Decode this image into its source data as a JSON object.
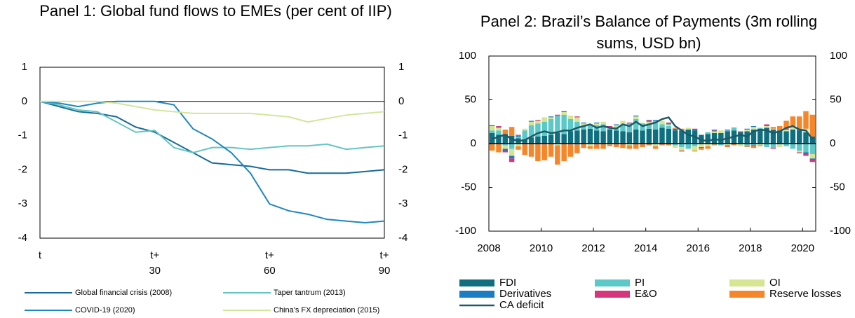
{
  "chart_data": [
    {
      "type": "line",
      "title": "Panel 1: Global fund flows to EMEs (per cent of IIP)",
      "x": [
        0,
        5,
        10,
        15,
        20,
        25,
        30,
        35,
        40,
        45,
        50,
        55,
        60,
        65,
        70,
        75,
        80,
        85,
        90
      ],
      "xlim": [
        0,
        90
      ],
      "xticks": [
        {
          "value": 0,
          "label": "t"
        },
        {
          "value": 30,
          "label": "t+ 30"
        },
        {
          "value": 60,
          "label": "t+ 60"
        },
        {
          "value": 90,
          "label": "t+ 90"
        }
      ],
      "ylim": [
        -4,
        1
      ],
      "yticks": [
        -4,
        -3,
        -2,
        -1,
        0,
        1
      ],
      "y2lim": [
        -4,
        1
      ],
      "y2ticks": [
        -4,
        -3,
        -2,
        -1,
        0,
        1
      ],
      "series": [
        {
          "name": "Global financial crisis (2008)",
          "color": "#176b98",
          "values": [
            0,
            -0.15,
            -0.3,
            -0.35,
            -0.45,
            -0.75,
            -0.9,
            -1.2,
            -1.5,
            -1.8,
            -1.85,
            -1.9,
            -2.0,
            -2.0,
            -2.1,
            -2.1,
            -2.1,
            -2.05,
            -2.0
          ]
        },
        {
          "name": "Taper tantrum (2013)",
          "color": "#62c6c0",
          "values": [
            0,
            -0.1,
            -0.25,
            -0.3,
            -0.6,
            -0.9,
            -0.85,
            -1.35,
            -1.5,
            -1.35,
            -1.35,
            -1.4,
            -1.35,
            -1.3,
            -1.3,
            -1.25,
            -1.4,
            -1.35,
            -1.3
          ]
        },
        {
          "name": "COVID-19 (2020)",
          "color": "#1c87c1",
          "values": [
            0,
            -0.05,
            -0.15,
            -0.05,
            0,
            0,
            0,
            -0.1,
            -0.8,
            -1.1,
            -1.5,
            -2.1,
            -3.0,
            -3.2,
            -3.3,
            -3.45,
            -3.5,
            -3.55,
            -3.5
          ]
        },
        {
          "name": "China's FX depreciation (2015)",
          "color": "#d3e59c",
          "values": [
            0,
            0,
            0,
            0,
            -0.05,
            -0.15,
            -0.25,
            -0.3,
            -0.35,
            -0.35,
            -0.35,
            -0.35,
            -0.4,
            -0.45,
            -0.6,
            -0.5,
            -0.4,
            -0.35,
            -0.3
          ]
        }
      ]
    },
    {
      "type": "bar",
      "stacked": true,
      "title": "Panel 2: Brazil’s Balance of Payments (3m rolling sums, USD bn)",
      "x": [
        2008,
        2008.25,
        2008.5,
        2008.75,
        2009,
        2009.25,
        2009.5,
        2009.75,
        2010,
        2010.25,
        2010.5,
        2010.75,
        2011,
        2011.25,
        2011.5,
        2011.75,
        2012,
        2012.25,
        2012.5,
        2012.75,
        2013,
        2013.25,
        2013.5,
        2013.75,
        2014,
        2014.25,
        2014.5,
        2014.75,
        2015,
        2015.25,
        2015.5,
        2015.75,
        2016,
        2016.25,
        2016.5,
        2016.75,
        2017,
        2017.25,
        2017.5,
        2017.75,
        2018,
        2018.25,
        2018.5,
        2018.75,
        2019,
        2019.25,
        2019.5,
        2019.75,
        2020,
        2020.25
      ],
      "xlim": [
        2008,
        2020.5
      ],
      "xticks": [
        2008,
        2010,
        2012,
        2014,
        2016,
        2018,
        2020
      ],
      "ylim": [
        -100,
        100
      ],
      "yticks": [
        -100,
        -50,
        0,
        50,
        100
      ],
      "y2lim": [
        -100,
        100
      ],
      "y2ticks": [
        -100,
        -50,
        0,
        50,
        100
      ],
      "series": [
        {
          "name": "FDI",
          "color": "#0f6f7f",
          "values": [
            12,
            10,
            11,
            9,
            6,
            5,
            7,
            8,
            9,
            10,
            12,
            11,
            14,
            15,
            16,
            17,
            15,
            14,
            16,
            15,
            14,
            13,
            16,
            15,
            17,
            16,
            18,
            17,
            15,
            14,
            16,
            15,
            10,
            11,
            12,
            12,
            14,
            15,
            13,
            14,
            16,
            17,
            18,
            16,
            15,
            14,
            16,
            15,
            13,
            8
          ]
        },
        {
          "name": "PI",
          "color": "#5cc9c8",
          "values": [
            3,
            5,
            -2,
            -6,
            2,
            10,
            14,
            15,
            16,
            18,
            20,
            22,
            14,
            10,
            5,
            4,
            6,
            8,
            3,
            4,
            8,
            10,
            12,
            8,
            6,
            10,
            4,
            3,
            -2,
            -4,
            -6,
            -3,
            0,
            2,
            -1,
            -2,
            1,
            3,
            0,
            -3,
            -2,
            1,
            -4,
            -5,
            -1,
            -3,
            -6,
            -8,
            -10,
            -12
          ]
        },
        {
          "name": "OI",
          "color": "#d5e592",
          "values": [
            5,
            3,
            -4,
            -8,
            -3,
            2,
            4,
            3,
            5,
            2,
            -2,
            3,
            4,
            5,
            2,
            -3,
            2,
            3,
            -1,
            2,
            4,
            -2,
            3,
            1,
            2,
            -3,
            4,
            2,
            -3,
            -4,
            2,
            -5,
            -4,
            -3,
            2,
            3,
            -2,
            1,
            -3,
            2,
            3,
            -2,
            2,
            1,
            -3,
            2,
            3,
            -2,
            4,
            -5
          ]
        },
        {
          "name": "Derivatives",
          "color": "#1b7ec2",
          "values": [
            1,
            1,
            -2,
            -3,
            1,
            0,
            1,
            0,
            0,
            1,
            0,
            1,
            0,
            -1,
            1,
            0,
            1,
            0,
            0,
            1,
            0,
            0,
            1,
            0,
            1,
            1,
            0,
            1,
            2,
            1,
            0,
            1,
            0,
            0,
            1,
            0,
            1,
            0,
            0,
            1,
            1,
            0,
            1,
            0,
            0,
            1,
            0,
            1,
            -2,
            -1
          ]
        },
        {
          "name": "E&O",
          "color": "#d6367c",
          "values": [
            0,
            1,
            -2,
            -4,
            1,
            -1,
            0,
            1,
            -1,
            0,
            1,
            0,
            -1,
            1,
            0,
            1,
            -1,
            0,
            1,
            -1,
            0,
            1,
            0,
            -1,
            1,
            0,
            -1,
            1,
            0,
            -1,
            0,
            1,
            -1,
            0,
            1,
            0,
            -1,
            0,
            1,
            0,
            -1,
            0,
            1,
            -1,
            0,
            1,
            0,
            -1,
            -2,
            -3
          ]
        },
        {
          "name": "Reserve losses",
          "color": "#f5862a",
          "values": [
            -8,
            -10,
            5,
            10,
            -4,
            -12,
            -15,
            -20,
            -18,
            -15,
            -22,
            -20,
            -14,
            -10,
            -5,
            -3,
            -5,
            -6,
            -2,
            -3,
            -5,
            -4,
            -6,
            -3,
            -2,
            -3,
            -1,
            -2,
            1,
            2,
            0,
            -1,
            -2,
            -3,
            -1,
            0,
            -1,
            -2,
            0,
            -1,
            -2,
            -1,
            0,
            2,
            5,
            8,
            12,
            15,
            20,
            25
          ]
        },
        {
          "name": "CA deficit",
          "type": "line",
          "color": "#1d5a68",
          "values": [
            5,
            8,
            10,
            5,
            3,
            4,
            8,
            12,
            14,
            12,
            13,
            15,
            15,
            18,
            20,
            22,
            18,
            20,
            18,
            17,
            22,
            20,
            25,
            20,
            22,
            24,
            28,
            30,
            20,
            15,
            10,
            8,
            4,
            3,
            5,
            4,
            6,
            8,
            10,
            8,
            14,
            16,
            15,
            12,
            14,
            18,
            20,
            16,
            15,
            5
          ]
        }
      ]
    }
  ]
}
